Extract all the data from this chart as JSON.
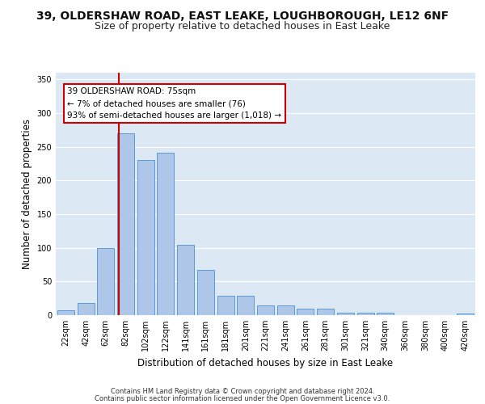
{
  "title_line1": "39, OLDERSHAW ROAD, EAST LEAKE, LOUGHBOROUGH, LE12 6NF",
  "title_line2": "Size of property relative to detached houses in East Leake",
  "xlabel": "Distribution of detached houses by size in East Leake",
  "ylabel": "Number of detached properties",
  "categories": [
    "22sqm",
    "42sqm",
    "62sqm",
    "82sqm",
    "102sqm",
    "122sqm",
    "141sqm",
    "161sqm",
    "181sqm",
    "201sqm",
    "221sqm",
    "241sqm",
    "261sqm",
    "281sqm",
    "301sqm",
    "321sqm",
    "340sqm",
    "360sqm",
    "380sqm",
    "400sqm",
    "420sqm"
  ],
  "values": [
    7,
    18,
    100,
    270,
    230,
    241,
    105,
    67,
    29,
    29,
    14,
    14,
    10,
    10,
    4,
    4,
    4,
    0,
    0,
    0,
    3
  ],
  "bar_color": "#aec6e8",
  "bar_edge_color": "#5b9bd5",
  "vline_color": "#cc0000",
  "vline_x_index": 2.65,
  "annotation_box_text": "39 OLDERSHAW ROAD: 75sqm\n← 7% of detached houses are smaller (76)\n93% of semi-detached houses are larger (1,018) →",
  "ylim": [
    0,
    360
  ],
  "yticks": [
    0,
    50,
    100,
    150,
    200,
    250,
    300,
    350
  ],
  "background_color": "#dde8f5",
  "grid_color": "#ffffff",
  "footer_line1": "Contains HM Land Registry data © Crown copyright and database right 2024.",
  "footer_line2": "Contains public sector information licensed under the Open Government Licence v3.0.",
  "title_fontsize": 10,
  "subtitle_fontsize": 9,
  "axis_label_fontsize": 8.5,
  "tick_fontsize": 7,
  "annotation_fontsize": 7.5,
  "footer_fontsize": 6
}
